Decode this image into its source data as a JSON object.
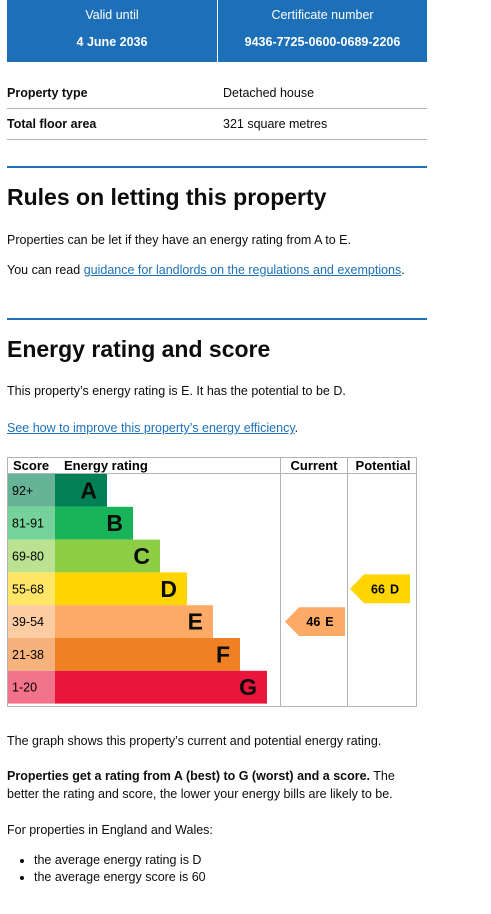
{
  "summary_boxes": [
    {
      "label": "Valid until",
      "value": "4 June 2036"
    },
    {
      "label": "Certificate number",
      "value": "9436-7725-0600-0689-2206"
    }
  ],
  "property_rows": [
    [
      "Property type",
      "Detached house"
    ],
    [
      "Total floor area",
      "321 square metres"
    ]
  ],
  "letting": {
    "heading": "Rules on letting this property",
    "paragraph": "Properties can be let if they have an energy rating from A to E.",
    "link_intro": "You can read ",
    "link_text": "guidance for landlords on the regulations and exemptions",
    "link_end": "."
  },
  "energy": {
    "heading": "Energy rating and score",
    "paragraph": "This property’s energy rating is E. It has the potential to be D.",
    "link_text": "See how to improve this property’s energy efficiency",
    "link_end": "."
  },
  "rating_chart": {
    "headers": [
      "Score",
      "Energy rating",
      "Current",
      "Potential"
    ],
    "bands": [
      {
        "range": "92+",
        "letter": "A"
      },
      {
        "range": "81-91",
        "letter": "B"
      },
      {
        "range": "69-80",
        "letter": "C"
      },
      {
        "range": "55-68",
        "letter": "D"
      },
      {
        "range": "39-54",
        "letter": "E"
      },
      {
        "range": "21-38",
        "letter": "F"
      },
      {
        "range": "1-20",
        "letter": "G"
      }
    ],
    "current": {
      "score": "46",
      "rating": "E"
    },
    "potential": {
      "score": "66",
      "rating": "D"
    }
  },
  "explanation": {
    "graph_note": "The graph shows this property’s current and potential energy rating.",
    "bold": "Properties get a rating from A (best) to G (worst) and a score.",
    "rest": " The better the rating and score, the lower your energy bills are likely to be.",
    "intro": "For properties in England and Wales:",
    "list": [
      "the average energy rating is D",
      "the average energy score is 60"
    ]
  }
}
